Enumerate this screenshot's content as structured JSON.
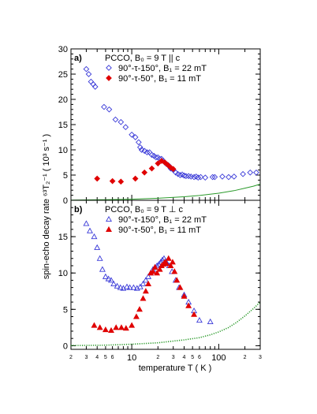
{
  "colors": {
    "blue": "#3a3ad8",
    "red": "#e00000",
    "green": "#2a9a2a",
    "axis": "#000000"
  },
  "chart_data": [
    {
      "type": "scatter",
      "panel_label": "a)",
      "header": "PCCO, B₀ = 9 T || c",
      "xscale": "log",
      "xlim": [
        2,
        300
      ],
      "ylim": [
        0,
        30
      ],
      "yticks": [
        0,
        5,
        10,
        15,
        20,
        25,
        30
      ],
      "series": [
        {
          "name": "90°-τ-150°,  B₁ = 22 mT",
          "marker": "diamond-open",
          "color": "#3a3ad8",
          "x": [
            3.0,
            3.2,
            3.4,
            3.6,
            3.8,
            4.8,
            5.5,
            6.5,
            7.5,
            8.5,
            10,
            11,
            12,
            12.5,
            13,
            14,
            15,
            16,
            17,
            18,
            19,
            20,
            21,
            22,
            23,
            24,
            25,
            26,
            27,
            28,
            30,
            32,
            34,
            36,
            38,
            40,
            42,
            45,
            48,
            52,
            55,
            58,
            62,
            70,
            85,
            90,
            110,
            130,
            150,
            190,
            230,
            270
          ],
          "y": [
            26,
            25,
            23.5,
            23,
            22.5,
            18.5,
            18,
            16,
            15.5,
            14.5,
            13,
            12.5,
            11.5,
            10.5,
            10,
            9.8,
            9.5,
            9.5,
            9,
            8.8,
            8.5,
            8.5,
            8.2,
            8.2,
            7.8,
            7.5,
            7.2,
            7,
            6.8,
            6.3,
            6,
            5.5,
            5.2,
            5,
            5.1,
            4.9,
            4.8,
            4.8,
            4.7,
            4.6,
            4.7,
            4.5,
            4.6,
            4.5,
            4.6,
            4.6,
            4.7,
            4.6,
            4.7,
            5.2,
            5.5,
            5.5
          ]
        },
        {
          "name": "90°-τ-50°,   B₁ = 11 mT",
          "marker": "diamond-filled",
          "color": "#e00000",
          "x": [
            4,
            6,
            7.5,
            11,
            14,
            17,
            20,
            22,
            24,
            26,
            28,
            30
          ],
          "y": [
            4.3,
            3.8,
            3.7,
            4.3,
            5.5,
            6.3,
            7.3,
            7.8,
            7.5,
            7.0,
            6.5,
            6.2
          ]
        },
        {
          "name": "",
          "marker": "line",
          "color": "#2a9a2a",
          "x": [
            2,
            5,
            10,
            20,
            40,
            60,
            80,
            100,
            150,
            200,
            250,
            300
          ],
          "y": [
            0.05,
            0.12,
            0.22,
            0.4,
            0.7,
            0.95,
            1.2,
            1.4,
            1.9,
            2.4,
            2.8,
            3.2
          ]
        }
      ]
    },
    {
      "type": "scatter",
      "panel_label": "b)",
      "header": "PCCO, B₀ = 9 T ⊥ c",
      "xscale": "log",
      "xlim": [
        2,
        300
      ],
      "ylim": [
        -0.5,
        20
      ],
      "yticks": [
        0,
        5,
        10,
        15
      ],
      "xticks_major": [
        10,
        100
      ],
      "xticks_minor_labeled": [
        2,
        3,
        4,
        5,
        6,
        20,
        30,
        40,
        50,
        60,
        200,
        300
      ],
      "xlabel": "temperature  T ( K )",
      "series": [
        {
          "name": "90°-τ-150°,  B₁ = 22 mT",
          "marker": "triangle-open",
          "color": "#3a3ad8",
          "x": [
            3.0,
            3.3,
            3.7,
            4.0,
            4.3,
            4.6,
            5.0,
            5.4,
            5.8,
            6.2,
            6.8,
            7.4,
            8.0,
            8.8,
            9.5,
            10.5,
            11.5,
            12.5,
            13.5,
            14.5,
            15.5,
            16.5,
            17.5,
            18.5,
            19.5,
            20.5,
            21.5,
            22.5,
            23.5,
            24.5,
            25.5,
            27,
            29,
            32,
            35,
            40,
            45,
            52,
            60,
            80
          ],
          "y": [
            16.8,
            15.8,
            15,
            13.5,
            12,
            10.5,
            9.5,
            9.2,
            9.0,
            8.5,
            8.2,
            8.0,
            7.9,
            8.1,
            8.0,
            8.0,
            7.9,
            8.1,
            8.5,
            9.0,
            9.5,
            10.0,
            10.5,
            10.8,
            11.0,
            11.2,
            11.5,
            11.8,
            12.0,
            11.6,
            11.3,
            11.0,
            10.2,
            9.0,
            8.0,
            7.0,
            6.0,
            4.8,
            3.5,
            3.3
          ]
        },
        {
          "name": "90°-τ-50°,   B₁ = 11 mT",
          "marker": "triangle-filled",
          "color": "#e00000",
          "x": [
            3.7,
            4.3,
            5.0,
            5.8,
            6.6,
            7.6,
            8.6,
            10,
            11.3,
            12.3,
            13.5,
            14.5,
            15.5,
            16.5,
            17.5,
            18.5,
            19.5,
            21,
            22,
            23,
            24,
            25,
            26.5,
            28,
            29.5,
            31,
            33,
            36,
            40,
            45,
            52
          ],
          "y": [
            2.8,
            2.5,
            2.2,
            2.1,
            2.5,
            2.5,
            2.4,
            2.8,
            4.0,
            5.0,
            6.5,
            7.5,
            8.5,
            10.0,
            10.2,
            10.8,
            10.0,
            10.5,
            11.0,
            11.2,
            11.5,
            11.3,
            12.0,
            11.0,
            11.5,
            10.2,
            9.0,
            8.0,
            6.8,
            5.5,
            4.3
          ]
        },
        {
          "name": "",
          "marker": "dotted",
          "color": "#2a9a2a",
          "x": [
            2,
            5,
            10,
            20,
            40,
            60,
            80,
            100,
            130,
            160,
            200,
            250,
            300
          ],
          "y": [
            0.02,
            0.08,
            0.2,
            0.4,
            0.8,
            1.1,
            1.5,
            1.9,
            2.5,
            3.2,
            4.1,
            5.1,
            6.0
          ]
        }
      ]
    }
  ],
  "shared_ylabel": "spin-echo decay rate  ⁶³T₂⁻¹ ( 10³ s⁻¹ )"
}
